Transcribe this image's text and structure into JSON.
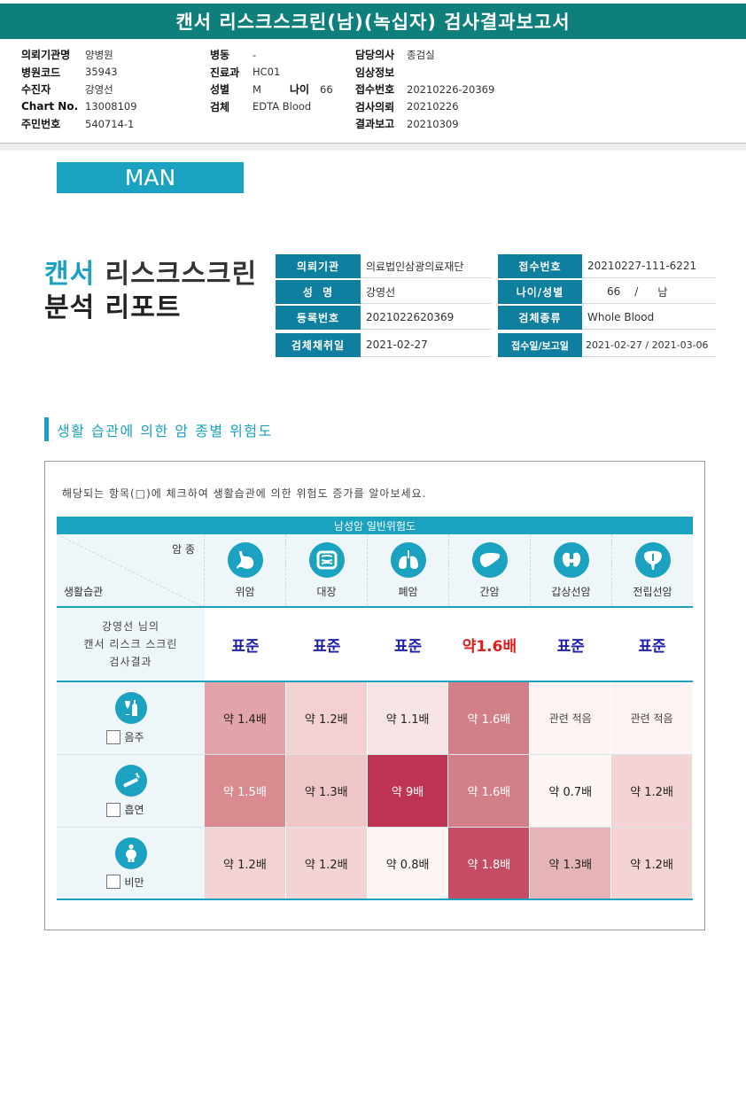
{
  "report_title": "캔서 리스크스크린(남)(녹십자) 검사결과보고서",
  "info": {
    "col1": [
      {
        "label": "의뢰기관명",
        "value": "양병원"
      },
      {
        "label": "병원코드",
        "value": "35943"
      },
      {
        "label": "수진자",
        "value": "강영선"
      },
      {
        "label": "Chart No.",
        "value": "13008109"
      },
      {
        "label": "주민번호",
        "value": "540714-1"
      }
    ],
    "col2": [
      {
        "label": "병동",
        "value": "-"
      },
      {
        "label": "진료과",
        "value": "HC01"
      },
      {
        "label": "성별",
        "value": "M"
      },
      {
        "label": "검체",
        "value": "EDTA Blood"
      }
    ],
    "age": {
      "label": "나이",
      "value": "66"
    },
    "col3": [
      {
        "label": "담당의사",
        "value": "종검실"
      },
      {
        "label": "임상정보",
        "value": ""
      },
      {
        "label": "접수번호",
        "value": "20210226-20369"
      },
      {
        "label": "검사의뢰",
        "value": "20210226"
      },
      {
        "label": "결과보고",
        "value": "20210309"
      }
    ]
  },
  "gender_label": "MAN",
  "big_title": {
    "accent": "캔서",
    "rest": " 리스크스크린",
    "line2": "분석 리포트"
  },
  "patient": {
    "institution_label": "의뢰기관",
    "institution": "의료법인삼광의료재단",
    "name_label": "성  명",
    "name": "강영선",
    "reg_label": "등록번호",
    "reg_no": "2021022620369",
    "collect_label": "검체채취일",
    "collect_date": "2021-02-27",
    "receipt_label": "접수번호",
    "receipt_no": "20210227-111-6221",
    "agesex_label": "나이/성별",
    "age": "66",
    "slash": "/",
    "sex": "남",
    "specimen_label": "검체종류",
    "specimen": "Whole Blood",
    "dates_label": "접수일/보고일",
    "dates": "2021-02-27 / 2021-03-06"
  },
  "section_title": "생활 습관에 의한 암 종별 위험도",
  "intro": "해당되는 항목(□)에 체크하여 생활습관에 의한 위험도 증가를 알아보세요.",
  "table": {
    "group_header": "남성암 일반위험도",
    "corner_top": "암 종",
    "corner_bottom": "생활습관",
    "cancers": [
      {
        "name": "위암",
        "icon": "stomach-icon"
      },
      {
        "name": "대장",
        "icon": "intestine-icon"
      },
      {
        "name": "폐암",
        "icon": "lungs-icon"
      },
      {
        "name": "간암",
        "icon": "liver-icon"
      },
      {
        "name": "갑상선암",
        "icon": "thyroid-icon"
      },
      {
        "name": "전립선암",
        "icon": "prostate-icon"
      }
    ],
    "result_label": [
      "강영선 님의",
      "캔서 리스크 스크린",
      "검사결과"
    ],
    "results": [
      "표준",
      "표준",
      "표준",
      "약1.6배",
      "표준",
      "표준"
    ],
    "factors": [
      {
        "name": "음주",
        "icon": "alcohol-icon",
        "values": [
          "약 1.4배",
          "약 1.2배",
          "약 1.1배",
          "약 1.6배",
          "관련 적음",
          "관련 적음"
        ]
      },
      {
        "name": "흡연",
        "icon": "smoking-icon",
        "values": [
          "약 1.5배",
          "약 1.3배",
          "약 9배",
          "약 1.6배",
          "약 0.7배",
          "약 1.2배"
        ]
      },
      {
        "name": "비만",
        "icon": "obesity-icon",
        "values": [
          "약 1.2배",
          "약 1.2배",
          "약 0.8배",
          "약 1.8배",
          "약 1.3배",
          "약 1.2배"
        ]
      }
    ],
    "colors": {
      "accent": "#1aa2c0",
      "normal_text": "#1f1fb0",
      "high_text": "#e01b1b"
    }
  }
}
